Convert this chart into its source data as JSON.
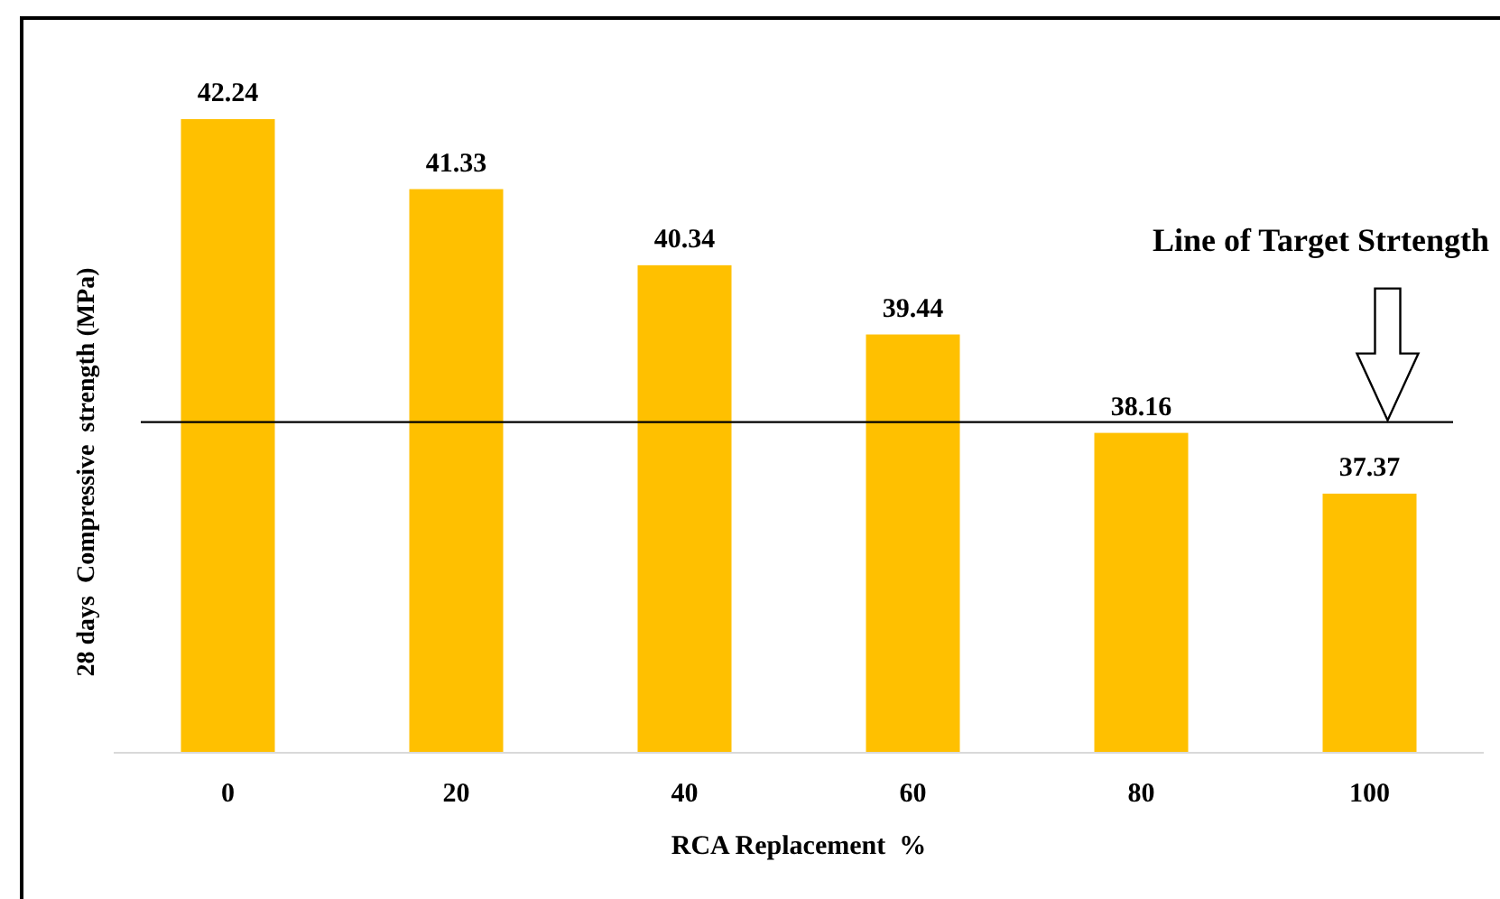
{
  "chart_data": {
    "type": "bar",
    "xlabel": "RCA Replacement  %",
    "ylabel": "28 days  Compressive  strength (MPa)",
    "categories": [
      "0",
      "20",
      "40",
      "60",
      "80",
      "100"
    ],
    "values": [
      42.24,
      41.33,
      40.34,
      39.44,
      38.16,
      37.37
    ],
    "color": "#ffc000",
    "ylim": [
      34,
      42.24
    ],
    "tick_labels": "x",
    "data_labels": true,
    "ref_lines": [
      {
        "axis": "y",
        "value": 38.3,
        "label": "Line of Target Strtength",
        "color": "#000000"
      }
    ]
  }
}
